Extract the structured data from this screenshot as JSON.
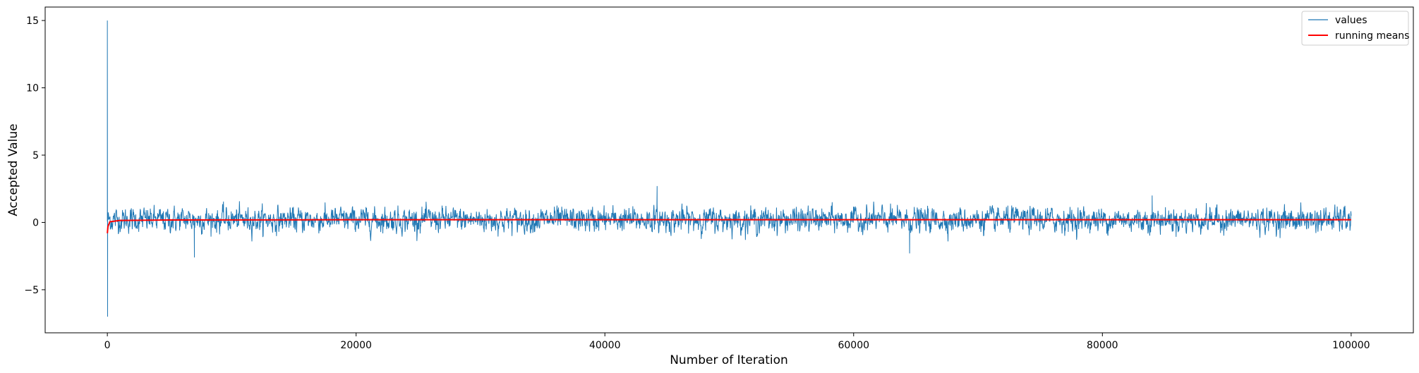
{
  "chart_data": {
    "type": "line",
    "title": "",
    "xlabel": "Number of Iteration",
    "ylabel": "Accepted Value",
    "xlim": [
      -5000,
      105000
    ],
    "ylim": [
      -8.2,
      16.0
    ],
    "xticks": [
      0,
      20000,
      40000,
      60000,
      80000,
      100000
    ],
    "xtick_labels": [
      "0",
      "20000",
      "40000",
      "60000",
      "80000",
      "100000"
    ],
    "yticks": [
      -5,
      0,
      5,
      10,
      15
    ],
    "ytick_labels": [
      "−5",
      "0",
      "5",
      "10",
      "15"
    ],
    "grid": false,
    "legend": {
      "placement": "top-right"
    },
    "n_points": 100000,
    "series": [
      {
        "name": "values",
        "color": "#1f77b4",
        "description_stats": {
          "typical_low": -1.8,
          "typical_high": 1.8,
          "min": -7.0,
          "max": 15.0,
          "x_of_max": 0,
          "x_of_min": 0
        },
        "notable_points": [
          {
            "x": 0,
            "y": 15.0
          },
          {
            "x": 20,
            "y": -7.0
          },
          {
            "x": 7000,
            "y": -2.6
          },
          {
            "x": 44200,
            "y": 2.7
          },
          {
            "x": 64500,
            "y": -2.3
          },
          {
            "x": 84000,
            "y": 2.0
          }
        ]
      },
      {
        "name": "running means",
        "color": "#ff0000",
        "points": [
          {
            "x": 0,
            "y": -0.8
          },
          {
            "x": 50,
            "y": -0.3
          },
          {
            "x": 200,
            "y": 0.05
          },
          {
            "x": 1000,
            "y": 0.15
          },
          {
            "x": 5000,
            "y": 0.18
          },
          {
            "x": 20000,
            "y": 0.2
          },
          {
            "x": 50000,
            "y": 0.2
          },
          {
            "x": 100000,
            "y": 0.2
          }
        ]
      }
    ]
  }
}
